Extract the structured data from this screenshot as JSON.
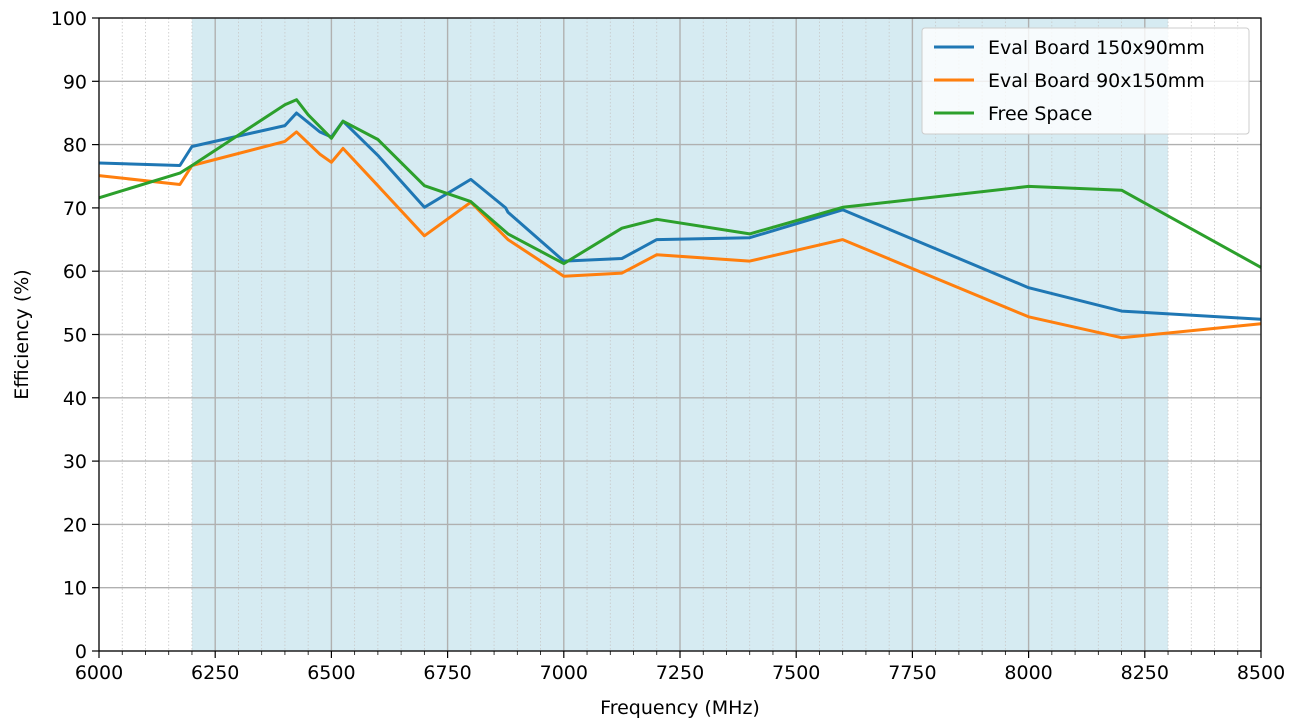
{
  "chart_data": {
    "type": "line",
    "title": "",
    "xlabel": "Frequency (MHz)",
    "ylabel": "Efficiency (%)",
    "xlim": [
      6000,
      8500
    ],
    "ylim": [
      0,
      100
    ],
    "x_ticks": [
      6000,
      6250,
      6500,
      6750,
      7000,
      7250,
      7500,
      7750,
      8000,
      8250,
      8500
    ],
    "y_ticks": [
      0,
      10,
      20,
      30,
      40,
      50,
      60,
      70,
      80,
      90,
      100
    ],
    "x_minor_step": 50,
    "grid": true,
    "legend_position": "top-right",
    "highlight_band": {
      "x_start": 6200,
      "x_end": 8300,
      "color": "#add8e6"
    },
    "series": [
      {
        "name": "Eval Board 150x90mm",
        "color": "#1f77b4",
        "points": [
          [
            6000,
            77.1
          ],
          [
            6174,
            76.7
          ],
          [
            6200,
            79.7
          ],
          [
            6400,
            83.0
          ],
          [
            6425,
            85.0
          ],
          [
            6450,
            83.5
          ],
          [
            6475,
            82.0
          ],
          [
            6500,
            81.2
          ],
          [
            6525,
            83.7
          ],
          [
            6600,
            78.3
          ],
          [
            6700,
            70.1
          ],
          [
            6800,
            74.5
          ],
          [
            6875,
            70.0
          ],
          [
            6880,
            69.3
          ],
          [
            7000,
            61.6
          ],
          [
            7125,
            62.0
          ],
          [
            7200,
            65.0
          ],
          [
            7400,
            65.3
          ],
          [
            7600,
            69.7
          ],
          [
            8000,
            57.4
          ],
          [
            8200,
            53.7
          ],
          [
            8500,
            52.4
          ]
        ]
      },
      {
        "name": "Eval Board 90x150mm",
        "color": "#ff7f0e",
        "points": [
          [
            6000,
            75.1
          ],
          [
            6174,
            73.7
          ],
          [
            6200,
            76.7
          ],
          [
            6400,
            80.5
          ],
          [
            6425,
            82.0
          ],
          [
            6475,
            78.5
          ],
          [
            6500,
            77.2
          ],
          [
            6525,
            79.4
          ],
          [
            6600,
            73.5
          ],
          [
            6700,
            65.6
          ],
          [
            6800,
            70.9
          ],
          [
            6880,
            65.0
          ],
          [
            7000,
            59.2
          ],
          [
            7125,
            59.7
          ],
          [
            7200,
            62.6
          ],
          [
            7400,
            61.6
          ],
          [
            7600,
            65.0
          ],
          [
            8000,
            52.8
          ],
          [
            8200,
            49.5
          ],
          [
            8500,
            51.7
          ]
        ]
      },
      {
        "name": "Free Space",
        "color": "#2ca02c",
        "points": [
          [
            6000,
            71.6
          ],
          [
            6174,
            75.5
          ],
          [
            6200,
            76.7
          ],
          [
            6400,
            86.3
          ],
          [
            6425,
            87.1
          ],
          [
            6450,
            84.7
          ],
          [
            6500,
            81.0
          ],
          [
            6525,
            83.7
          ],
          [
            6600,
            80.8
          ],
          [
            6700,
            73.5
          ],
          [
            6800,
            71.0
          ],
          [
            6880,
            65.9
          ],
          [
            7000,
            61.2
          ],
          [
            7125,
            66.8
          ],
          [
            7200,
            68.2
          ],
          [
            7400,
            65.9
          ],
          [
            7600,
            70.1
          ],
          [
            8000,
            73.4
          ],
          [
            8200,
            72.8
          ],
          [
            8500,
            60.6
          ]
        ]
      }
    ]
  }
}
